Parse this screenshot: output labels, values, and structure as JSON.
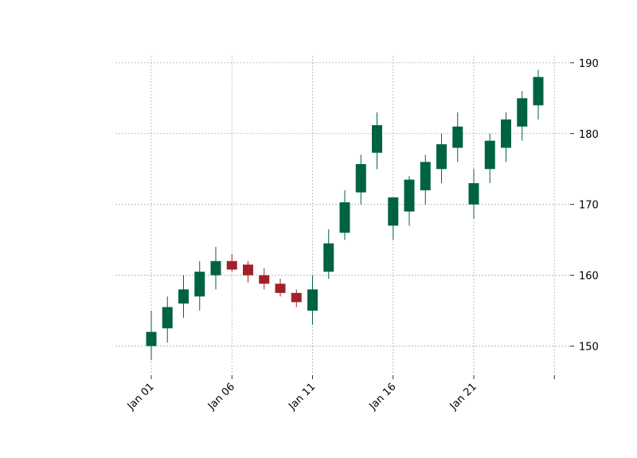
{
  "chart_data": {
    "type": "candlestick",
    "title": "",
    "xlabel": "",
    "ylabel": "",
    "x_ticks": [
      "Jan 01",
      "Jan 06",
      "Jan 11",
      "Jan 16",
      "Jan 21",
      ""
    ],
    "y_ticks": [
      "150",
      "160",
      "170",
      "180",
      "190"
    ],
    "ylim": [
      146,
      191
    ],
    "y_axis_side": "right",
    "grid": true,
    "colors": {
      "up": "#006340",
      "down": "#a02128",
      "grid": "#b0b0b0"
    },
    "candles": [
      {
        "date": "Jan 01",
        "open": 150.0,
        "high": 155.0,
        "low": 148.0,
        "close": 152.0
      },
      {
        "date": "Jan 02",
        "open": 152.5,
        "high": 157.0,
        "low": 150.5,
        "close": 155.5
      },
      {
        "date": "Jan 03",
        "open": 156.0,
        "high": 160.0,
        "low": 154.0,
        "close": 158.0
      },
      {
        "date": "Jan 04",
        "open": 157.0,
        "high": 162.0,
        "low": 155.0,
        "close": 160.5
      },
      {
        "date": "Jan 05",
        "open": 160.0,
        "high": 164.0,
        "low": 158.0,
        "close": 162.0
      },
      {
        "date": "Jan 06",
        "open": 162.0,
        "high": 163.0,
        "low": 160.5,
        "close": 160.8
      },
      {
        "date": "Jan 07",
        "open": 161.5,
        "high": 162.0,
        "low": 159.0,
        "close": 160.0
      },
      {
        "date": "Jan 08",
        "open": 160.0,
        "high": 161.0,
        "low": 158.0,
        "close": 158.8
      },
      {
        "date": "Jan 09",
        "open": 158.8,
        "high": 159.5,
        "low": 157.0,
        "close": 157.5
      },
      {
        "date": "Jan 10",
        "open": 157.5,
        "high": 158.0,
        "low": 155.5,
        "close": 156.2
      },
      {
        "date": "Jan 11",
        "open": 155.0,
        "high": 160.0,
        "low": 153.0,
        "close": 158.0
      },
      {
        "date": "Jan 12",
        "open": 160.5,
        "high": 166.5,
        "low": 159.5,
        "close": 164.5
      },
      {
        "date": "Jan 13",
        "open": 166.0,
        "high": 172.0,
        "low": 165.0,
        "close": 170.3
      },
      {
        "date": "Jan 14",
        "open": 171.7,
        "high": 177.0,
        "low": 170.0,
        "close": 175.7
      },
      {
        "date": "Jan 15",
        "open": 177.3,
        "high": 183.0,
        "low": 175.0,
        "close": 181.2
      },
      {
        "date": "Jan 16",
        "open": 167.0,
        "high": 171.0,
        "low": 165.0,
        "close": 171.0
      },
      {
        "date": "Jan 17",
        "open": 169.0,
        "high": 174.0,
        "low": 167.0,
        "close": 173.5
      },
      {
        "date": "Jan 18",
        "open": 172.0,
        "high": 177.0,
        "low": 170.0,
        "close": 176.0
      },
      {
        "date": "Jan 19",
        "open": 175.0,
        "high": 180.0,
        "low": 173.0,
        "close": 178.5
      },
      {
        "date": "Jan 20",
        "open": 178.0,
        "high": 183.0,
        "low": 176.0,
        "close": 181.0
      },
      {
        "date": "Jan 21",
        "open": 170.0,
        "high": 175.0,
        "low": 168.0,
        "close": 173.0
      },
      {
        "date": "Jan 22",
        "open": 175.0,
        "high": 180.0,
        "low": 173.0,
        "close": 179.0
      },
      {
        "date": "Jan 23",
        "open": 178.0,
        "high": 183.0,
        "low": 176.0,
        "close": 182.0
      },
      {
        "date": "Jan 24",
        "open": 181.0,
        "high": 186.0,
        "low": 179.0,
        "close": 185.0
      },
      {
        "date": "Jan 25",
        "open": 184.0,
        "high": 189.0,
        "low": 182.0,
        "close": 188.0
      }
    ]
  }
}
